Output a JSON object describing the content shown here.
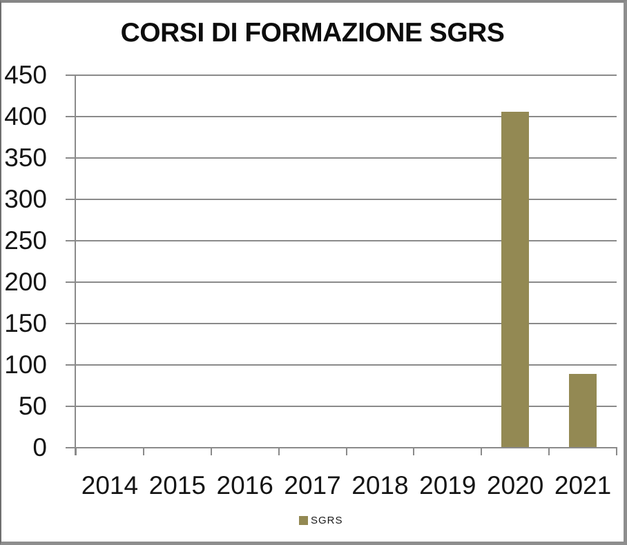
{
  "window": {
    "background": "#ffffff",
    "border_color": "#8a8a8a"
  },
  "chart_data": {
    "type": "bar",
    "title": "CORSI DI FORMAZIONE SGRS",
    "categories": [
      "2014",
      "2015",
      "2016",
      "2017",
      "2018",
      "2019",
      "2020",
      "2021"
    ],
    "series": [
      {
        "name": "SGRS",
        "color": "#938953",
        "values": [
          0,
          0,
          0,
          0,
          0,
          0,
          405,
          88
        ]
      }
    ],
    "xlabel": "",
    "ylabel": "",
    "ylim": [
      0,
      450
    ],
    "yticks": [
      0,
      50,
      100,
      150,
      200,
      250,
      300,
      350,
      400,
      450
    ],
    "grid": true,
    "grid_color": "#8a8a8a",
    "legend_position": "bottom",
    "legend": [
      "SGRS"
    ]
  }
}
